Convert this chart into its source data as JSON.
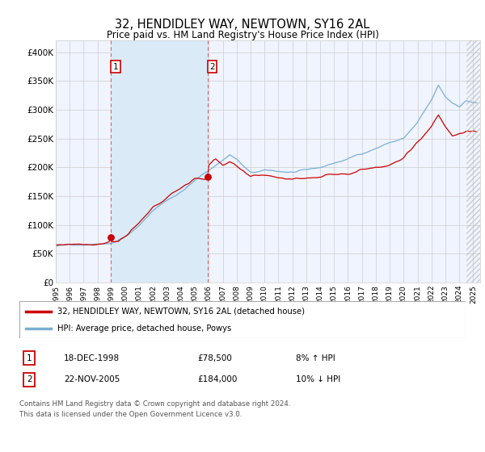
{
  "title": "32, HENDIDLEY WAY, NEWTOWN, SY16 2AL",
  "subtitle": "Price paid vs. HM Land Registry's House Price Index (HPI)",
  "ylim": [
    0,
    420000
  ],
  "yticks": [
    0,
    50000,
    100000,
    150000,
    200000,
    250000,
    300000,
    350000,
    400000
  ],
  "ytick_labels": [
    "£0",
    "£50K",
    "£100K",
    "£150K",
    "£200K",
    "£250K",
    "£300K",
    "£350K",
    "£400K"
  ],
  "xlim_start": 1995.0,
  "xlim_end": 2025.5,
  "purchase1_date": 1998.96,
  "purchase1_price": 78500,
  "purchase2_date": 2005.9,
  "purchase2_price": 184000,
  "hpi_color": "#7aafd4",
  "price_color": "#cc0000",
  "shaded_color": "#daeaf7",
  "dashed_line_color": "#dd6666",
  "background_color": "#f0f4ff",
  "grid_color": "#cccccc",
  "legend_entry1": "32, HENDIDLEY WAY, NEWTOWN, SY16 2AL (detached house)",
  "legend_entry2": "HPI: Average price, detached house, Powys",
  "table_row1": [
    "1",
    "18-DEC-1998",
    "£78,500",
    "8% ↑ HPI"
  ],
  "table_row2": [
    "2",
    "22-NOV-2005",
    "£184,000",
    "10% ↓ HPI"
  ],
  "footnote": "Contains HM Land Registry data © Crown copyright and database right 2024.\nThis data is licensed under the Open Government Licence v3.0.",
  "hatch_start_year": 2024.5,
  "start_year": 1995.0,
  "end_year": 2025.4
}
